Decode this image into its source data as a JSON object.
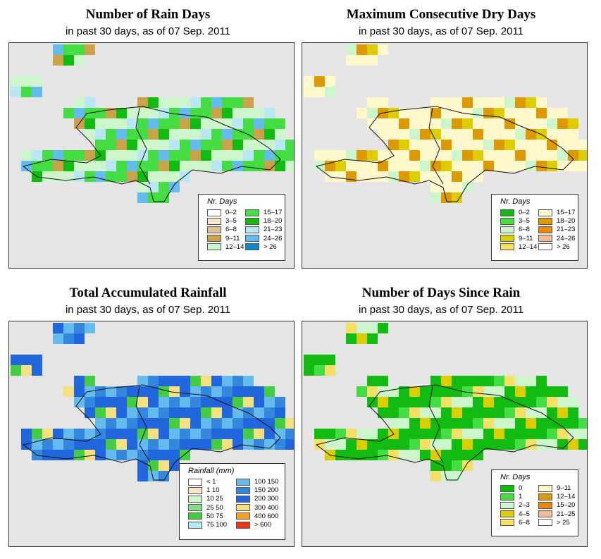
{
  "panels": [
    {
      "title": "Number of Rain Days",
      "subtitle": "in past 30 days, as of  07 Sep. 2011",
      "legend": {
        "title": "Nr. Days",
        "items": [
          {
            "label": "0–2",
            "color": "#ffffff"
          },
          {
            "label": "3–5",
            "color": "#f5e6cc"
          },
          {
            "label": "6–8",
            "color": "#dcc290"
          },
          {
            "label": "9–11",
            "color": "#c9a24a"
          },
          {
            "label": "12–14",
            "color": "#ccf5cc"
          },
          {
            "label": "15–17",
            "color": "#44dd44"
          },
          {
            "label": "18–20",
            "color": "#11bb11"
          },
          {
            "label": "21–23",
            "color": "#b8e6f5"
          },
          {
            "label": "24–26",
            "color": "#66bbee"
          },
          {
            "label": "> 26",
            "color": "#1188cc"
          }
        ]
      }
    },
    {
      "title": "Maximum Consecutive Dry Days",
      "subtitle": "in past 30 days, as of  07 Sep. 2011",
      "legend": {
        "title": "Nr. Days",
        "items": [
          {
            "label": "0–2",
            "color": "#11bb11"
          },
          {
            "label": "3–5",
            "color": "#44dd44"
          },
          {
            "label": "6–8",
            "color": "#ccf5cc"
          },
          {
            "label": "9–11",
            "color": "#ddcc00"
          },
          {
            "label": "12–14",
            "color": "#f5e066"
          },
          {
            "label": "15–17",
            "color": "#fff8cc"
          },
          {
            "label": "18–20",
            "color": "#dd9900"
          },
          {
            "label": "21–23",
            "color": "#ee8800"
          },
          {
            "label": "24–26",
            "color": "#f5bb99"
          },
          {
            "label": "> 26",
            "color": "#ffffff"
          }
        ]
      }
    },
    {
      "title": "Total Accumulated Rainfall",
      "subtitle": "in past 30 days, as of  07 Sep. 2011",
      "legend": {
        "title": "Rainfall (mm)",
        "items": [
          {
            "label": "< 1",
            "color": "#ffffff"
          },
          {
            "label": "1   10",
            "color": "#f5e6cc"
          },
          {
            "label": "10   25",
            "color": "#ccf5cc"
          },
          {
            "label": "25   50",
            "color": "#88dd88"
          },
          {
            "label": "50   75",
            "color": "#44cc44"
          },
          {
            "label": "75   100",
            "color": "#b8e6f5"
          },
          {
            "label": "100   150",
            "color": "#66bbee"
          },
          {
            "label": "150   200",
            "color": "#3388dd"
          },
          {
            "label": "200   300",
            "color": "#2266dd"
          },
          {
            "label": "300   400",
            "color": "#f5e080"
          },
          {
            "label": "400   600",
            "color": "#f5a020"
          },
          {
            "label": "> 600",
            "color": "#ee3311"
          }
        ]
      }
    },
    {
      "title": "Number of Days Since Rain",
      "subtitle": "in past 30 days, as of  07 Sep. 2011",
      "legend": {
        "title": "Nr. Days",
        "items": [
          {
            "label": "0",
            "color": "#11bb11"
          },
          {
            "label": "1",
            "color": "#44dd44"
          },
          {
            "label": "2–3",
            "color": "#ccf5cc"
          },
          {
            "label": "4–5",
            "color": "#ddcc00"
          },
          {
            "label": "6–8",
            "color": "#f5e066"
          },
          {
            "label": "9–11",
            "color": "#fff8cc"
          },
          {
            "label": "12–14",
            "color": "#dd9900"
          },
          {
            "label": "15–20",
            "color": "#ee8800"
          },
          {
            "label": "21–25",
            "color": "#f5bb99"
          },
          {
            "label": "> 25",
            "color": "#ffffff"
          }
        ]
      }
    }
  ]
}
